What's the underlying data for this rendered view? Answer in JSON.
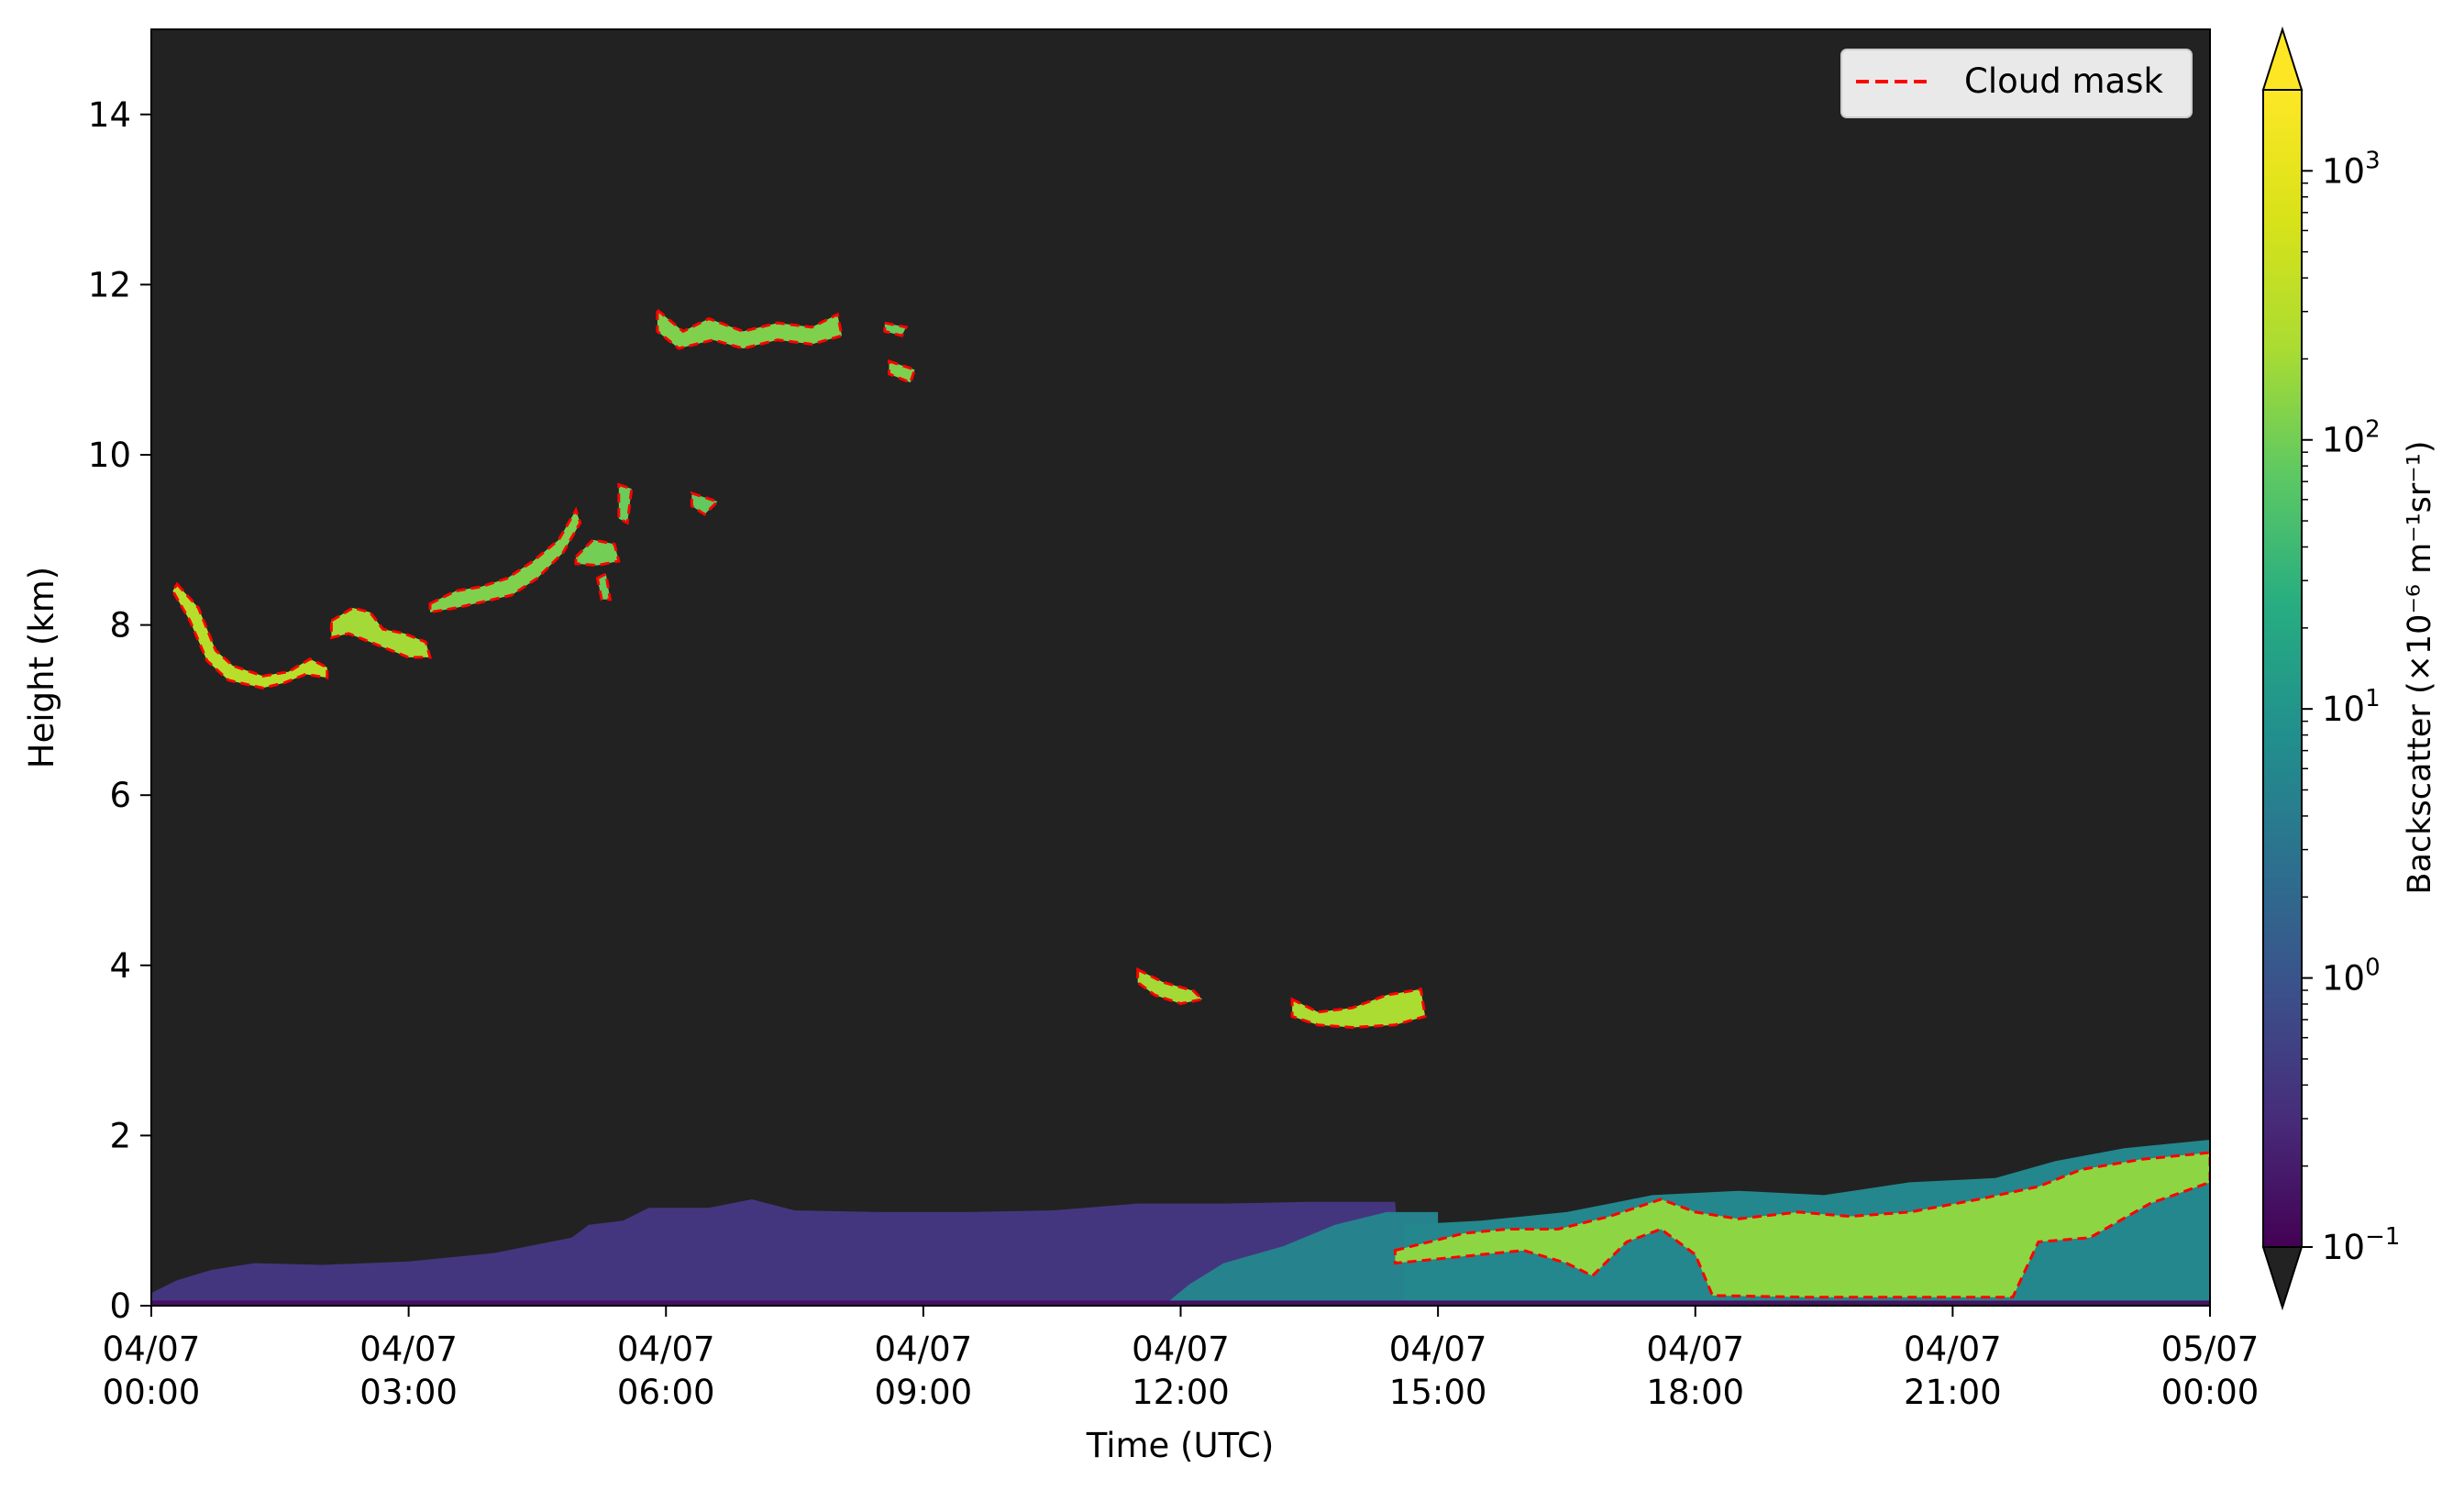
{
  "chart_data": {
    "type": "heatmap",
    "xlabel": "Time (UTC)",
    "ylabel": "Height (km)",
    "xlim_hours": [
      0,
      24
    ],
    "ylim": [
      0,
      15
    ],
    "x_ticks": [
      {
        "hour": 0,
        "date": "04/07",
        "time": "00:00"
      },
      {
        "hour": 3,
        "date": "04/07",
        "time": "03:00"
      },
      {
        "hour": 6,
        "date": "04/07",
        "time": "06:00"
      },
      {
        "hour": 9,
        "date": "04/07",
        "time": "09:00"
      },
      {
        "hour": 12,
        "date": "04/07",
        "time": "12:00"
      },
      {
        "hour": 15,
        "date": "04/07",
        "time": "15:00"
      },
      {
        "hour": 18,
        "date": "04/07",
        "time": "18:00"
      },
      {
        "hour": 21,
        "date": "04/07",
        "time": "21:00"
      },
      {
        "hour": 24,
        "date": "05/07",
        "time": "00:00"
      }
    ],
    "y_ticks": [
      0,
      2,
      4,
      6,
      8,
      10,
      12,
      14
    ],
    "legend": {
      "label": "Cloud mask",
      "placement": "top-right",
      "style": "dashed",
      "color": "#ff0000"
    },
    "colorbar": {
      "label": "Backscatter (×10⁻⁶ m⁻¹sr⁻¹)",
      "scale": "log",
      "range": [
        0.1,
        2000
      ],
      "ticks": [
        {
          "value": 0.1,
          "base": "10",
          "exp": "−1"
        },
        {
          "value": 1,
          "base": "10",
          "exp": "0"
        },
        {
          "value": 10,
          "base": "10",
          "exp": "1"
        },
        {
          "value": 100,
          "base": "10",
          "exp": "2"
        },
        {
          "value": 1000,
          "base": "10",
          "exp": "3"
        }
      ],
      "colormap": "viridis",
      "extend": "both"
    },
    "background_color": "#222222",
    "cloud_features": [
      {
        "id": "cirrus-a",
        "backscatter": 300,
        "cloud_mask": true,
        "points": [
          [
            0.3,
            8.48
          ],
          [
            0.55,
            8.2
          ],
          [
            0.75,
            7.7
          ],
          [
            0.95,
            7.52
          ],
          [
            1.3,
            7.4
          ],
          [
            1.6,
            7.45
          ],
          [
            1.85,
            7.6
          ],
          [
            2.05,
            7.5
          ],
          [
            2.05,
            7.38
          ],
          [
            1.8,
            7.42
          ],
          [
            1.55,
            7.32
          ],
          [
            1.3,
            7.26
          ],
          [
            0.9,
            7.35
          ],
          [
            0.65,
            7.58
          ],
          [
            0.45,
            8.05
          ],
          [
            0.25,
            8.4
          ]
        ]
      },
      {
        "id": "cirrus-b",
        "backscatter": 200,
        "cloud_mask": true,
        "points": [
          [
            2.1,
            8.05
          ],
          [
            2.35,
            8.2
          ],
          [
            2.55,
            8.15
          ],
          [
            2.7,
            7.95
          ],
          [
            2.95,
            7.9
          ],
          [
            3.2,
            7.8
          ],
          [
            3.25,
            7.62
          ],
          [
            3.0,
            7.62
          ],
          [
            2.75,
            7.72
          ],
          [
            2.5,
            7.82
          ],
          [
            2.3,
            7.9
          ],
          [
            2.1,
            7.85
          ]
        ]
      },
      {
        "id": "cirrus-c",
        "backscatter": 120,
        "cloud_mask": true,
        "points": [
          [
            3.25,
            8.25
          ],
          [
            3.55,
            8.4
          ],
          [
            3.85,
            8.45
          ],
          [
            4.15,
            8.55
          ],
          [
            4.45,
            8.75
          ],
          [
            4.75,
            9.0
          ],
          [
            4.95,
            9.35
          ],
          [
            5.0,
            9.2
          ],
          [
            4.8,
            8.85
          ],
          [
            4.5,
            8.55
          ],
          [
            4.2,
            8.35
          ],
          [
            3.9,
            8.28
          ],
          [
            3.55,
            8.2
          ],
          [
            3.25,
            8.15
          ]
        ]
      },
      {
        "id": "cirrus-d",
        "backscatter": 100,
        "cloud_mask": true,
        "points": [
          [
            4.95,
            8.8
          ],
          [
            5.15,
            9.0
          ],
          [
            5.4,
            8.95
          ],
          [
            5.45,
            8.75
          ],
          [
            5.2,
            8.7
          ],
          [
            4.95,
            8.72
          ]
        ]
      },
      {
        "id": "cirrus-e",
        "backscatter": 90,
        "cloud_mask": true,
        "points": [
          [
            5.45,
            9.65
          ],
          [
            5.6,
            9.6
          ],
          [
            5.55,
            9.2
          ],
          [
            5.45,
            9.25
          ]
        ]
      },
      {
        "id": "cirrus-f",
        "backscatter": 90,
        "cloud_mask": true,
        "points": [
          [
            5.2,
            8.55
          ],
          [
            5.3,
            8.6
          ],
          [
            5.35,
            8.3
          ],
          [
            5.25,
            8.3
          ]
        ]
      },
      {
        "id": "cirrus-g",
        "backscatter": 80,
        "cloud_mask": true,
        "points": [
          [
            6.3,
            9.55
          ],
          [
            6.6,
            9.45
          ],
          [
            6.45,
            9.3
          ],
          [
            6.3,
            9.4
          ]
        ]
      },
      {
        "id": "cirrus-h",
        "backscatter": 120,
        "cloud_mask": true,
        "points": [
          [
            5.9,
            11.7
          ],
          [
            6.2,
            11.45
          ],
          [
            6.5,
            11.6
          ],
          [
            6.9,
            11.45
          ],
          [
            7.3,
            11.55
          ],
          [
            7.7,
            11.5
          ],
          [
            8.0,
            11.65
          ],
          [
            8.05,
            11.4
          ],
          [
            7.7,
            11.3
          ],
          [
            7.3,
            11.35
          ],
          [
            6.9,
            11.25
          ],
          [
            6.55,
            11.35
          ],
          [
            6.15,
            11.25
          ],
          [
            5.9,
            11.45
          ]
        ]
      },
      {
        "id": "cirrus-i",
        "backscatter": 120,
        "cloud_mask": true,
        "points": [
          [
            8.6,
            11.1
          ],
          [
            8.9,
            11.0
          ],
          [
            8.85,
            10.85
          ],
          [
            8.6,
            10.95
          ]
        ]
      },
      {
        "id": "cirrus-j",
        "backscatter": 90,
        "cloud_mask": true,
        "points": [
          [
            8.55,
            11.55
          ],
          [
            8.8,
            11.5
          ],
          [
            8.75,
            11.4
          ],
          [
            8.55,
            11.45
          ]
        ]
      },
      {
        "id": "mid-a",
        "backscatter": 200,
        "cloud_mask": true,
        "points": [
          [
            11.5,
            3.95
          ],
          [
            11.8,
            3.8
          ],
          [
            12.15,
            3.7
          ],
          [
            12.25,
            3.6
          ],
          [
            12.0,
            3.55
          ],
          [
            11.7,
            3.65
          ],
          [
            11.5,
            3.8
          ]
        ]
      },
      {
        "id": "mid-b",
        "backscatter": 220,
        "cloud_mask": true,
        "points": [
          [
            13.3,
            3.6
          ],
          [
            13.6,
            3.45
          ],
          [
            14.0,
            3.5
          ],
          [
            14.4,
            3.65
          ],
          [
            14.8,
            3.72
          ],
          [
            14.85,
            3.4
          ],
          [
            14.5,
            3.3
          ],
          [
            14.0,
            3.27
          ],
          [
            13.6,
            3.3
          ],
          [
            13.3,
            3.4
          ]
        ]
      },
      {
        "id": "pbl-aerosol",
        "backscatter": 0.4,
        "cloud_mask": false,
        "points": [
          [
            0.0,
            0.0
          ],
          [
            0.0,
            0.15
          ],
          [
            0.3,
            0.3
          ],
          [
            0.7,
            0.42
          ],
          [
            1.2,
            0.5
          ],
          [
            2.0,
            0.48
          ],
          [
            3.0,
            0.52
          ],
          [
            4.0,
            0.62
          ],
          [
            4.9,
            0.8
          ],
          [
            5.1,
            0.95
          ],
          [
            5.5,
            1.0
          ],
          [
            5.8,
            1.15
          ],
          [
            6.5,
            1.15
          ],
          [
            7.0,
            1.25
          ],
          [
            7.5,
            1.12
          ],
          [
            8.5,
            1.1
          ],
          [
            9.5,
            1.1
          ],
          [
            10.5,
            1.12
          ],
          [
            11.5,
            1.2
          ],
          [
            12.5,
            1.2
          ],
          [
            13.5,
            1.22
          ],
          [
            14.5,
            1.22
          ],
          [
            14.6,
            0.0
          ]
        ]
      },
      {
        "id": "pbl-low",
        "backscatter": 5,
        "cloud_mask": false,
        "points": [
          [
            11.8,
            0.0
          ],
          [
            12.1,
            0.25
          ],
          [
            12.5,
            0.5
          ],
          [
            13.2,
            0.7
          ],
          [
            13.8,
            0.95
          ],
          [
            14.4,
            1.1
          ],
          [
            15.0,
            1.1
          ],
          [
            15.0,
            0.0
          ]
        ]
      },
      {
        "id": "pbl-evening",
        "backscatter": 6,
        "cloud_mask": false,
        "points": [
          [
            14.6,
            0.0
          ],
          [
            14.6,
            0.95
          ],
          [
            15.5,
            1.0
          ],
          [
            16.5,
            1.1
          ],
          [
            17.5,
            1.3
          ],
          [
            18.5,
            1.35
          ],
          [
            19.5,
            1.3
          ],
          [
            20.5,
            1.45
          ],
          [
            21.5,
            1.5
          ],
          [
            22.2,
            1.7
          ],
          [
            23.0,
            1.85
          ],
          [
            24.0,
            1.95
          ],
          [
            24.0,
            0.0
          ]
        ]
      },
      {
        "id": "bl-cloud",
        "backscatter": 150,
        "cloud_mask": true,
        "points": [
          [
            14.5,
            0.65
          ],
          [
            14.9,
            0.75
          ],
          [
            15.3,
            0.85
          ],
          [
            15.8,
            0.9
          ],
          [
            16.4,
            0.9
          ],
          [
            17.0,
            1.05
          ],
          [
            17.6,
            1.25
          ],
          [
            18.0,
            1.1
          ],
          [
            18.5,
            1.02
          ],
          [
            19.2,
            1.1
          ],
          [
            19.8,
            1.05
          ],
          [
            20.5,
            1.1
          ],
          [
            21.3,
            1.25
          ],
          [
            22.0,
            1.4
          ],
          [
            22.5,
            1.6
          ],
          [
            23.2,
            1.72
          ],
          [
            24.0,
            1.8
          ],
          [
            24.0,
            1.45
          ],
          [
            23.3,
            1.2
          ],
          [
            22.6,
            0.8
          ],
          [
            22.0,
            0.75
          ],
          [
            21.7,
            0.1
          ],
          [
            20.5,
            0.1
          ],
          [
            19.3,
            0.1
          ],
          [
            18.2,
            0.12
          ],
          [
            18.0,
            0.6
          ],
          [
            17.6,
            0.9
          ],
          [
            17.2,
            0.75
          ],
          [
            16.8,
            0.35
          ],
          [
            16.5,
            0.5
          ],
          [
            16.0,
            0.65
          ],
          [
            15.5,
            0.6
          ],
          [
            15.0,
            0.55
          ],
          [
            14.5,
            0.5
          ]
        ]
      },
      {
        "id": "near-ground",
        "backscatter": 0.15,
        "cloud_mask": false,
        "points": [
          [
            0.0,
            0.0
          ],
          [
            24.0,
            0.0
          ],
          [
            24.0,
            0.06
          ],
          [
            0.0,
            0.06
          ]
        ]
      }
    ]
  }
}
